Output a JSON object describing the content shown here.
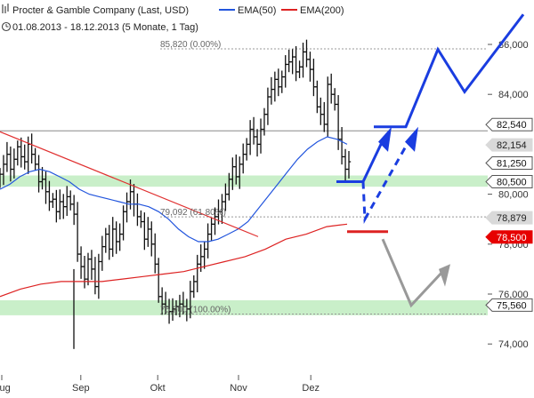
{
  "header": {
    "title": "Procter & Gamble Company (Last, USD)",
    "date_range": "01.08.2013 - 18.12.2013 (5 Monate, 1 Tag)"
  },
  "chart_data": {
    "type": "line",
    "title": "Procter & Gamble Company (Last, USD)",
    "subtitle": "01.08.2013 - 18.12.2013 (5 Monate, 1 Tag)",
    "xlabel": "",
    "ylabel": "",
    "ylim": [
      73.5,
      87.0
    ],
    "x_ticks": [
      "Aug",
      "Sep",
      "Okt",
      "Nov",
      "Dez"
    ],
    "y_ticks": [
      74.0,
      76.0,
      78.0,
      80.0,
      82.0,
      84.0,
      86.0
    ],
    "grid": false,
    "legend_position": "top",
    "series": [
      {
        "name": "Procter & Gamble Company (Last, USD)",
        "style": "ohlc-bars",
        "values": [
          80.8,
          81.2,
          81.6,
          81.0,
          81.4,
          81.9,
          81.5,
          81.3,
          82.0,
          81.6,
          81.2,
          80.5,
          80.6,
          80.1,
          79.7,
          79.8,
          79.3,
          79.7,
          79.5,
          79.9,
          79.6,
          79.2,
          77.6,
          77.1,
          76.6,
          77.4,
          77.0,
          76.3,
          77.3,
          77.9,
          78.4,
          77.8,
          78.6,
          78.1,
          78.4,
          79.3,
          79.7,
          80.1,
          79.6,
          79.1,
          78.9,
          78.2,
          78.6,
          78.0,
          77.2,
          75.9,
          75.6,
          75.5,
          75.3,
          75.4,
          75.5,
          75.6,
          75.5,
          75.4,
          76.1,
          76.5,
          77.2,
          77.5,
          77.8,
          78.4,
          78.8,
          79.1,
          79.3,
          79.7,
          80.0,
          80.6,
          81.1,
          80.7,
          81.2,
          81.6,
          82.0,
          82.6,
          82.3,
          82.0,
          82.6,
          83.2,
          83.9,
          84.2,
          84.6,
          84.3,
          84.7,
          85.2,
          85.3,
          85.5,
          84.9,
          85.1,
          85.7,
          85.4,
          85.0,
          84.3,
          83.5,
          83.2,
          82.8,
          84.4,
          84.0,
          83.6,
          82.2,
          81.5,
          81.0,
          81.3
        ]
      },
      {
        "name": "EMA(50)",
        "color": "#2255dd",
        "values": [
          80.2,
          80.4,
          80.7,
          80.9,
          81.0,
          80.9,
          80.7,
          80.5,
          80.2,
          80.0,
          79.9,
          79.8,
          79.7,
          79.6,
          79.6,
          79.5,
          79.3,
          79.0,
          78.6,
          78.3,
          78.1,
          78.1,
          78.2,
          78.4,
          78.6,
          78.9,
          79.4,
          79.9,
          80.4,
          80.9,
          81.4,
          81.8,
          82.1,
          82.3,
          82.2,
          82.0
        ]
      },
      {
        "name": "EMA(200)",
        "color": "#dd2222",
        "values": [
          75.9,
          76.2,
          76.4,
          76.5,
          76.5,
          76.5,
          76.6,
          76.7,
          76.8,
          76.9,
          77.1,
          77.3,
          77.5,
          77.8,
          78.2,
          78.4,
          78.7,
          78.8
        ]
      }
    ],
    "price_labels": [
      {
        "value": 82.54,
        "label": "82,540",
        "style": "plain"
      },
      {
        "value": 82.154,
        "label": "82,154",
        "style": "grey"
      },
      {
        "value": 81.25,
        "label": "81,250",
        "style": "plain"
      },
      {
        "value": 80.5,
        "label": "80,500",
        "style": "plain"
      },
      {
        "value": 78.879,
        "label": "78,879",
        "style": "grey"
      },
      {
        "value": 78.5,
        "label": "78,500",
        "style": "red"
      },
      {
        "value": 75.56,
        "label": "75,560",
        "style": "plain"
      }
    ],
    "annotations": [
      {
        "value": 85.82,
        "label": "85,820 (0.00%)"
      },
      {
        "value": 79.092,
        "label": "79,092 (61.80%)"
      },
      {
        "value": 75.2,
        "label": "75,200 (100.00%)"
      }
    ],
    "support_zones": [
      [
        80.3,
        80.75
      ],
      [
        75.15,
        75.75
      ]
    ],
    "colors": {
      "ema50": "#2255dd",
      "ema200": "#dd2222",
      "support_zone": "#c9efc9",
      "bars": "#111111",
      "scenario_up": "#1a3de0",
      "scenario_down": "#999999"
    }
  }
}
